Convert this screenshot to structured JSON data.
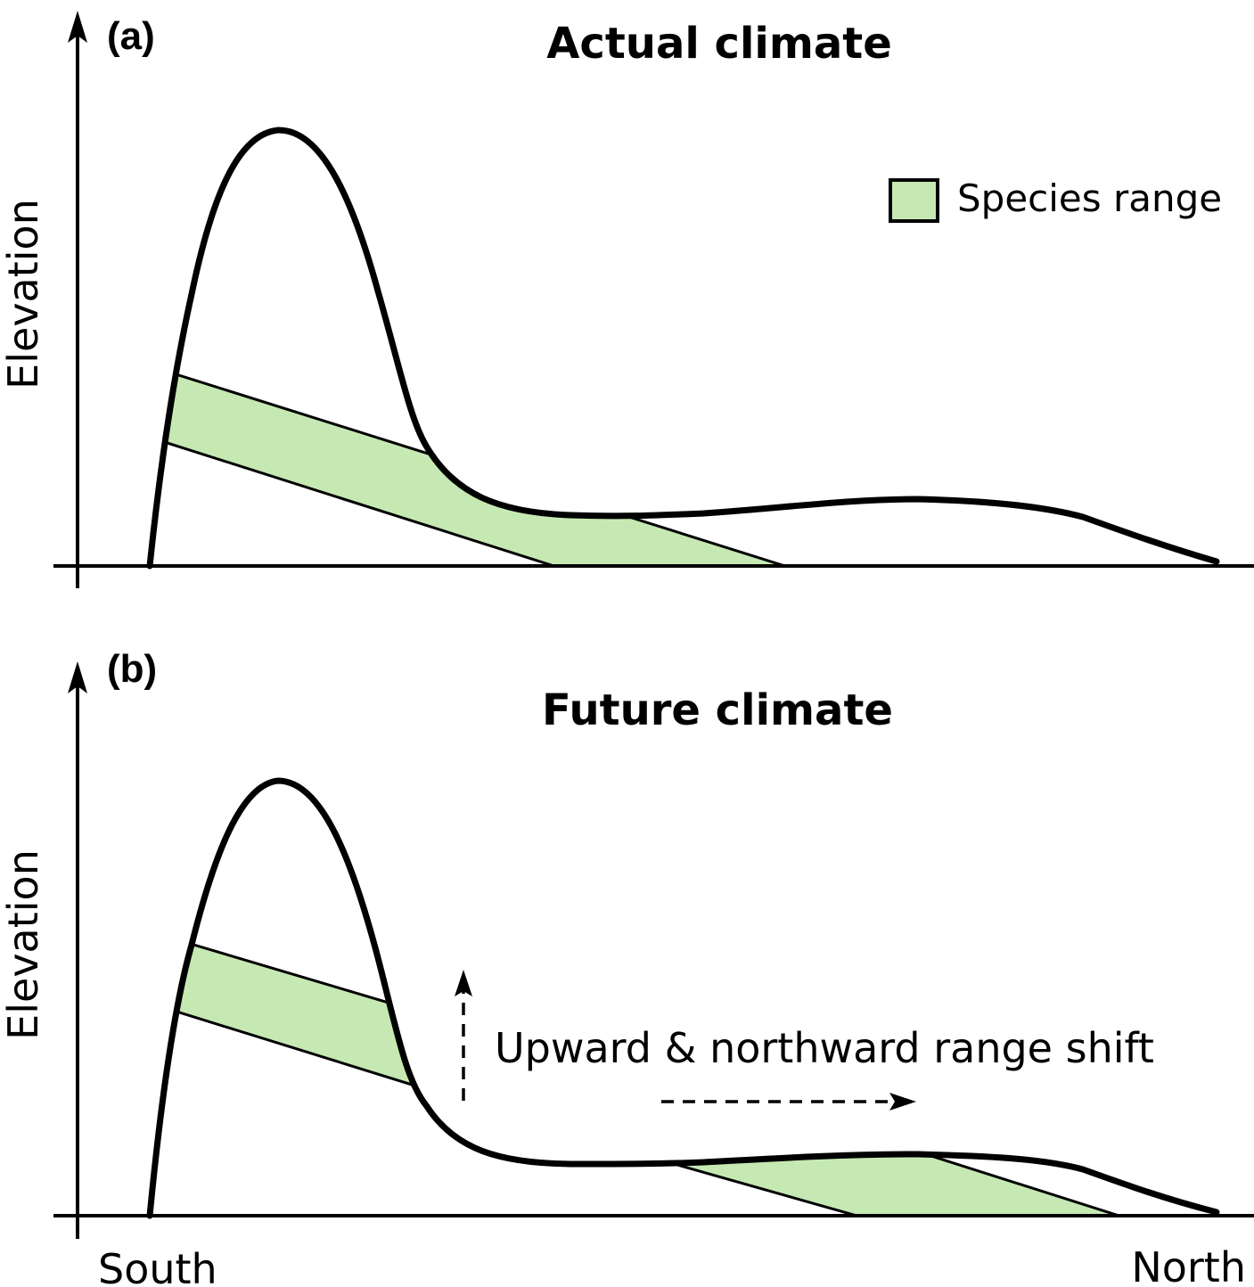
{
  "panels": [
    {
      "letter": "(a)",
      "title": "Actual climate",
      "ylabel": "Elevation"
    },
    {
      "letter": "(b)",
      "title": "Future climate",
      "ylabel": "Elevation"
    }
  ],
  "legend": {
    "label": "Species range",
    "fill_color": "#c6e9b4"
  },
  "annotation": {
    "text": "Upward & northward range shift"
  },
  "xaxis": {
    "left_label": "South",
    "right_label": "North"
  },
  "colors": {
    "line": "#000000",
    "band_fill": "#c6e9b4"
  }
}
